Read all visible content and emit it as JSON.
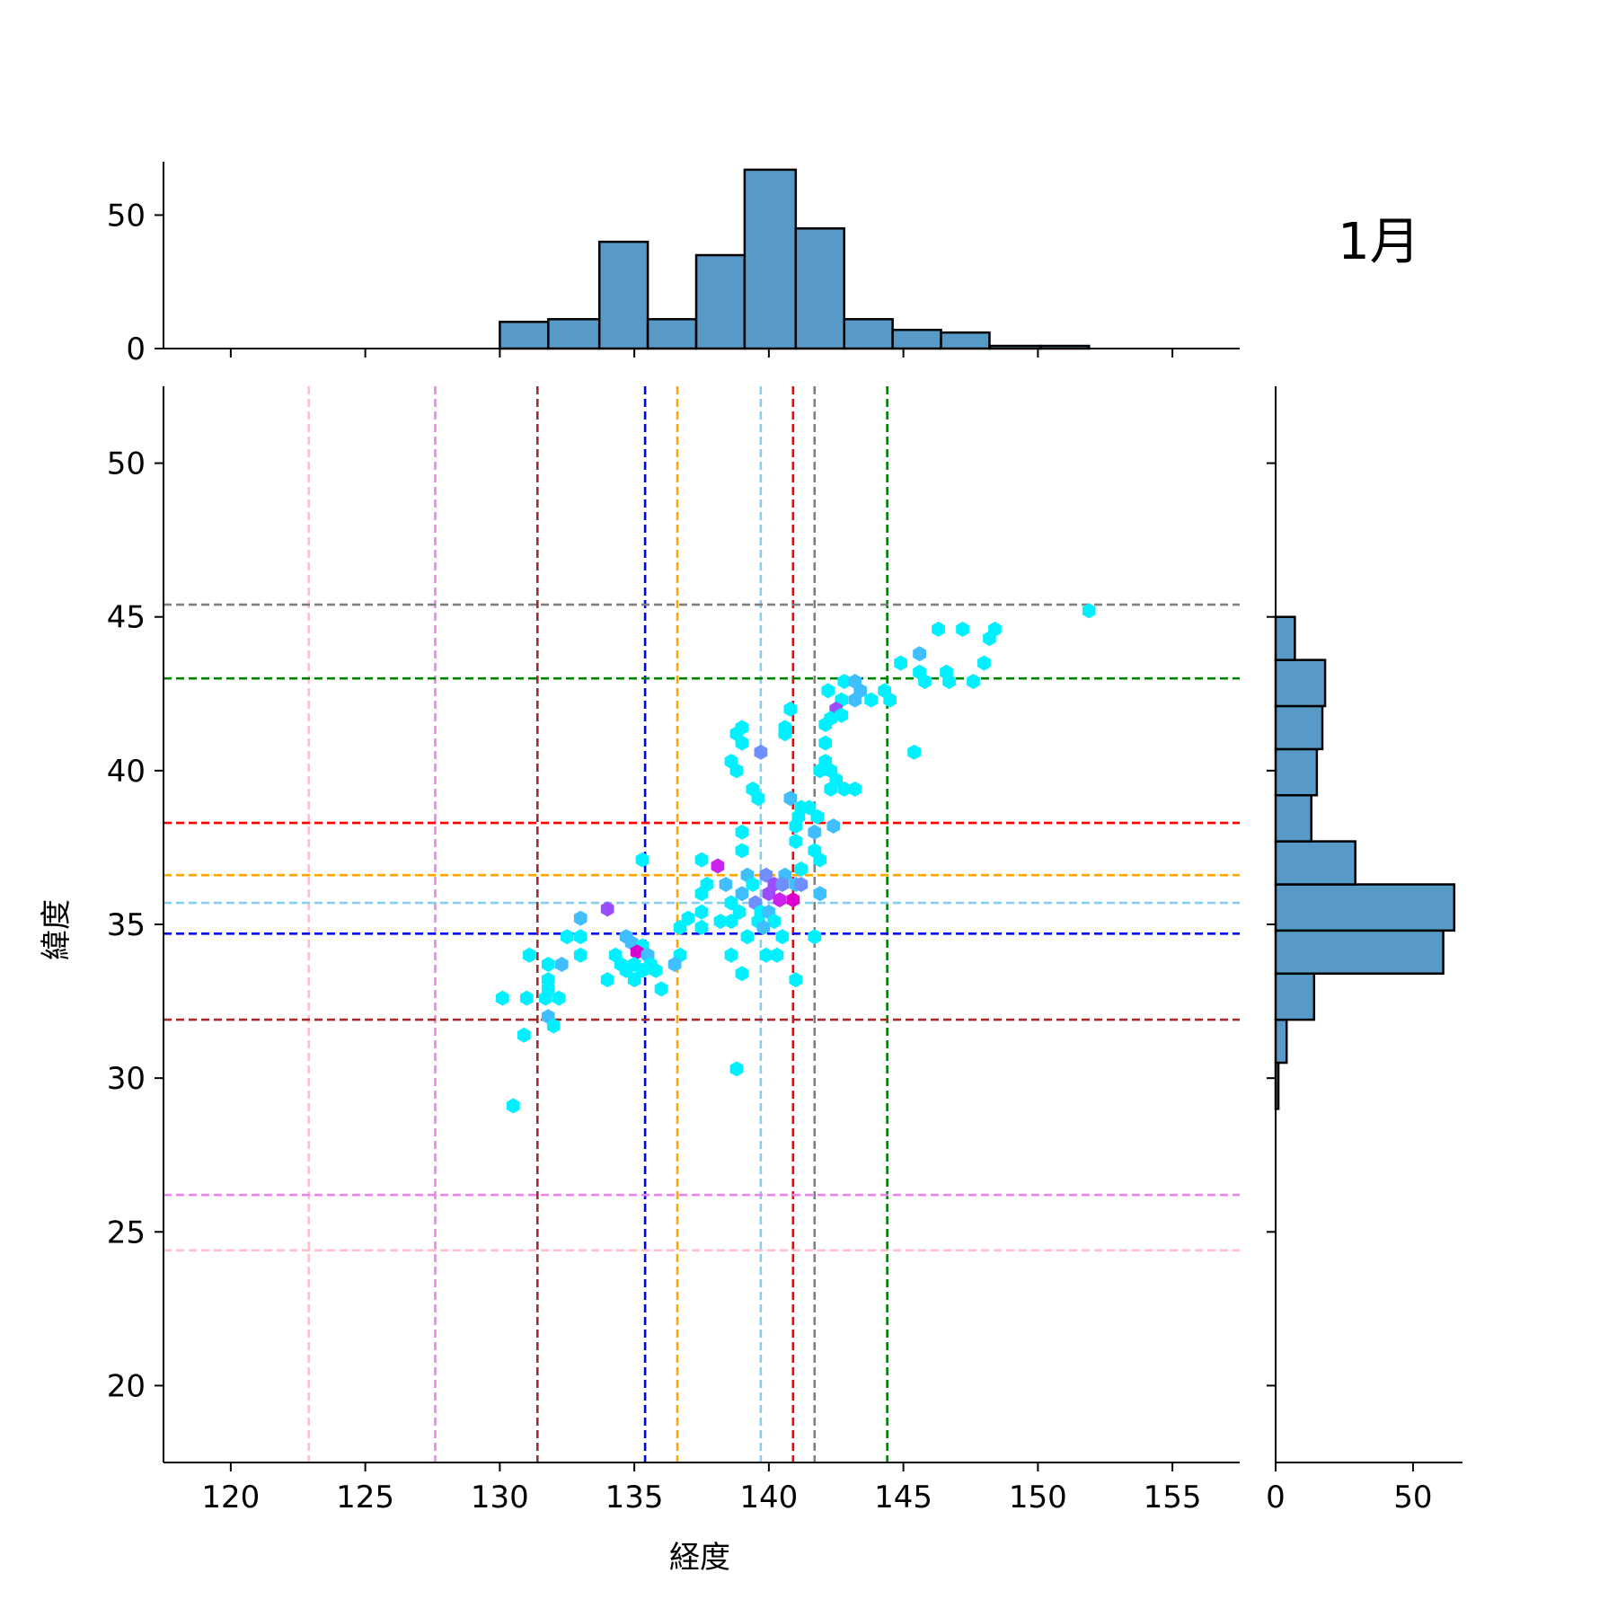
{
  "chart_data": {
    "type": "hexbin-jointplot",
    "title": "1月",
    "xlabel": "経度",
    "ylabel": "緯度",
    "xlim": [
      117.5,
      157.5
    ],
    "ylim": [
      17.5,
      52.5
    ],
    "xticks": [
      120,
      125,
      130,
      135,
      140,
      145,
      150,
      155
    ],
    "yticks": [
      20,
      25,
      30,
      35,
      40,
      45,
      50
    ],
    "marginal_x_ylim": [
      0,
      70
    ],
    "marginal_x_ticks": [
      0,
      50
    ],
    "marginal_y_xlim": [
      0,
      68
    ],
    "marginal_y_ticks": [
      0,
      50
    ],
    "hist_color": "#5799c7",
    "vlines": [
      {
        "x": 122.9,
        "color": "#ffc0cb"
      },
      {
        "x": 127.6,
        "color": "#ee82ee"
      },
      {
        "x": 131.4,
        "color": "#a52a2a"
      },
      {
        "x": 135.4,
        "color": "#0000ff"
      },
      {
        "x": 136.6,
        "color": "#ffa500"
      },
      {
        "x": 139.7,
        "color": "#87ceeb"
      },
      {
        "x": 140.9,
        "color": "#ff0000"
      },
      {
        "x": 141.7,
        "color": "#808080"
      },
      {
        "x": 144.4,
        "color": "#008000"
      }
    ],
    "hlines": [
      {
        "y": 45.4,
        "color": "#808080"
      },
      {
        "y": 43.0,
        "color": "#008000"
      },
      {
        "y": 38.3,
        "color": "#ff0000"
      },
      {
        "y": 36.6,
        "color": "#ffa500"
      },
      {
        "y": 35.7,
        "color": "#87ceeb"
      },
      {
        "y": 34.7,
        "color": "#0000ff"
      },
      {
        "y": 31.9,
        "color": "#a52a2a"
      },
      {
        "y": 26.2,
        "color": "#ee82ee"
      },
      {
        "y": 24.4,
        "color": "#ffc0cb"
      }
    ],
    "x_hist": [
      {
        "x0": 130.0,
        "x1": 131.8,
        "count": 10
      },
      {
        "x0": 131.8,
        "x1": 133.7,
        "count": 11
      },
      {
        "x0": 133.7,
        "x1": 135.5,
        "count": 40
      },
      {
        "x0": 135.5,
        "x1": 137.3,
        "count": 11
      },
      {
        "x0": 137.3,
        "x1": 139.1,
        "count": 35
      },
      {
        "x0": 139.1,
        "x1": 141.0,
        "count": 67
      },
      {
        "x0": 141.0,
        "x1": 142.8,
        "count": 45
      },
      {
        "x0": 142.8,
        "x1": 144.6,
        "count": 11
      },
      {
        "x0": 144.6,
        "x1": 146.4,
        "count": 7
      },
      {
        "x0": 146.4,
        "x1": 148.2,
        "count": 6
      },
      {
        "x0": 148.2,
        "x1": 150.1,
        "count": 1
      },
      {
        "x0": 150.1,
        "x1": 151.9,
        "count": 1
      }
    ],
    "y_hist": [
      {
        "y0": 29.0,
        "y1": 30.5,
        "count": 1
      },
      {
        "y0": 30.5,
        "y1": 31.9,
        "count": 4
      },
      {
        "y0": 31.9,
        "y1": 33.4,
        "count": 14
      },
      {
        "y0": 33.4,
        "y1": 34.8,
        "count": 61
      },
      {
        "y0": 34.8,
        "y1": 36.3,
        "count": 65
      },
      {
        "y0": 36.3,
        "y1": 37.7,
        "count": 29
      },
      {
        "y0": 37.7,
        "y1": 39.2,
        "count": 13
      },
      {
        "y0": 39.2,
        "y1": 40.7,
        "count": 15
      },
      {
        "y0": 40.7,
        "y1": 42.1,
        "count": 17
      },
      {
        "y0": 42.1,
        "y1": 43.6,
        "count": 18
      },
      {
        "y0": 43.6,
        "y1": 45.0,
        "count": 7
      }
    ],
    "hexbins": [
      {
        "x": 151.9,
        "y": 45.2,
        "c": "#00f0ff"
      },
      {
        "x": 146.3,
        "y": 44.6,
        "c": "#00f0ff"
      },
      {
        "x": 147.2,
        "y": 44.6,
        "c": "#00f0ff"
      },
      {
        "x": 148.4,
        "y": 44.6,
        "c": "#00f0ff"
      },
      {
        "x": 148.2,
        "y": 44.3,
        "c": "#00f0ff"
      },
      {
        "x": 145.6,
        "y": 43.8,
        "c": "#3fbfff"
      },
      {
        "x": 144.9,
        "y": 43.5,
        "c": "#00f0ff"
      },
      {
        "x": 148.0,
        "y": 43.5,
        "c": "#00f0ff"
      },
      {
        "x": 145.6,
        "y": 43.2,
        "c": "#00f0ff"
      },
      {
        "x": 146.6,
        "y": 43.2,
        "c": "#00f0ff"
      },
      {
        "x": 145.8,
        "y": 42.9,
        "c": "#00f0ff"
      },
      {
        "x": 146.7,
        "y": 42.9,
        "c": "#00f0ff"
      },
      {
        "x": 147.6,
        "y": 42.9,
        "c": "#00f0ff"
      },
      {
        "x": 142.8,
        "y": 42.9,
        "c": "#00f0ff"
      },
      {
        "x": 143.2,
        "y": 42.9,
        "c": "#3fbfff"
      },
      {
        "x": 142.2,
        "y": 42.6,
        "c": "#00f0ff"
      },
      {
        "x": 143.4,
        "y": 42.6,
        "c": "#3fbfff"
      },
      {
        "x": 144.3,
        "y": 42.6,
        "c": "#00f0ff"
      },
      {
        "x": 143.2,
        "y": 42.3,
        "c": "#3fbfff"
      },
      {
        "x": 143.8,
        "y": 42.3,
        "c": "#00f0ff"
      },
      {
        "x": 144.5,
        "y": 42.3,
        "c": "#00f0ff"
      },
      {
        "x": 142.7,
        "y": 42.3,
        "c": "#00f0ff"
      },
      {
        "x": 140.8,
        "y": 42.0,
        "c": "#00f0ff"
      },
      {
        "x": 142.5,
        "y": 42.0,
        "c": "#9a4dff"
      },
      {
        "x": 142.7,
        "y": 41.8,
        "c": "#00f0ff"
      },
      {
        "x": 142.3,
        "y": 41.7,
        "c": "#00f0ff"
      },
      {
        "x": 142.1,
        "y": 41.5,
        "c": "#00f0ff"
      },
      {
        "x": 140.6,
        "y": 41.4,
        "c": "#00f0ff"
      },
      {
        "x": 139.0,
        "y": 41.4,
        "c": "#00f0ff"
      },
      {
        "x": 138.8,
        "y": 41.2,
        "c": "#00f0ff"
      },
      {
        "x": 140.6,
        "y": 41.2,
        "c": "#00f0ff"
      },
      {
        "x": 139.0,
        "y": 40.9,
        "c": "#00f0ff"
      },
      {
        "x": 142.1,
        "y": 40.9,
        "c": "#00f0ff"
      },
      {
        "x": 139.7,
        "y": 40.6,
        "c": "#6f8fff"
      },
      {
        "x": 145.4,
        "y": 40.6,
        "c": "#00f0ff"
      },
      {
        "x": 138.6,
        "y": 40.3,
        "c": "#00f0ff"
      },
      {
        "x": 142.1,
        "y": 40.3,
        "c": "#00f0ff"
      },
      {
        "x": 141.9,
        "y": 40.0,
        "c": "#00f0ff"
      },
      {
        "x": 142.3,
        "y": 40.0,
        "c": "#00f0ff"
      },
      {
        "x": 138.8,
        "y": 40.0,
        "c": "#00f0ff"
      },
      {
        "x": 142.5,
        "y": 39.7,
        "c": "#00f0ff"
      },
      {
        "x": 139.4,
        "y": 39.4,
        "c": "#00f0ff"
      },
      {
        "x": 142.3,
        "y": 39.4,
        "c": "#00f0ff"
      },
      {
        "x": 142.8,
        "y": 39.4,
        "c": "#00f0ff"
      },
      {
        "x": 143.2,
        "y": 39.4,
        "c": "#00f0ff"
      },
      {
        "x": 139.6,
        "y": 39.1,
        "c": "#00f0ff"
      },
      {
        "x": 140.8,
        "y": 39.1,
        "c": "#3fbfff"
      },
      {
        "x": 141.2,
        "y": 38.8,
        "c": "#00f0ff"
      },
      {
        "x": 141.5,
        "y": 38.8,
        "c": "#00f0ff"
      },
      {
        "x": 141.1,
        "y": 38.5,
        "c": "#00f0ff"
      },
      {
        "x": 141.8,
        "y": 38.5,
        "c": "#00f0ff"
      },
      {
        "x": 141.0,
        "y": 38.2,
        "c": "#00f0ff"
      },
      {
        "x": 142.4,
        "y": 38.2,
        "c": "#3fbfff"
      },
      {
        "x": 139.0,
        "y": 38.0,
        "c": "#00f0ff"
      },
      {
        "x": 141.7,
        "y": 38.0,
        "c": "#3fbfff"
      },
      {
        "x": 141.0,
        "y": 37.7,
        "c": "#00f0ff"
      },
      {
        "x": 139.0,
        "y": 37.4,
        "c": "#00f0ff"
      },
      {
        "x": 141.7,
        "y": 37.4,
        "c": "#00f0ff"
      },
      {
        "x": 135.3,
        "y": 37.1,
        "c": "#00f0ff"
      },
      {
        "x": 137.5,
        "y": 37.1,
        "c": "#00f0ff"
      },
      {
        "x": 141.9,
        "y": 37.1,
        "c": "#00f0ff"
      },
      {
        "x": 141.2,
        "y": 36.8,
        "c": "#00f0ff"
      },
      {
        "x": 138.1,
        "y": 36.9,
        "c": "#cc22ee"
      },
      {
        "x": 139.2,
        "y": 36.6,
        "c": "#3fbfff"
      },
      {
        "x": 139.9,
        "y": 36.6,
        "c": "#6f8fff"
      },
      {
        "x": 140.6,
        "y": 36.6,
        "c": "#3fbfff"
      },
      {
        "x": 137.7,
        "y": 36.3,
        "c": "#00f0ff"
      },
      {
        "x": 138.4,
        "y": 36.3,
        "c": "#3fbfff"
      },
      {
        "x": 139.4,
        "y": 36.3,
        "c": "#00f0ff"
      },
      {
        "x": 140.2,
        "y": 36.3,
        "c": "#9a4dff"
      },
      {
        "x": 140.5,
        "y": 36.3,
        "c": "#6f8fff"
      },
      {
        "x": 141.0,
        "y": 36.3,
        "c": "#3fbfff"
      },
      {
        "x": 141.2,
        "y": 36.3,
        "c": "#6f8fff"
      },
      {
        "x": 137.5,
        "y": 36.0,
        "c": "#00f0ff"
      },
      {
        "x": 139.0,
        "y": 36.0,
        "c": "#3fbfff"
      },
      {
        "x": 140.0,
        "y": 36.0,
        "c": "#9a4dff"
      },
      {
        "x": 141.9,
        "y": 36.0,
        "c": "#3fbfff"
      },
      {
        "x": 138.6,
        "y": 35.7,
        "c": "#00f0ff"
      },
      {
        "x": 139.5,
        "y": 35.7,
        "c": "#6f8fff"
      },
      {
        "x": 140.4,
        "y": 35.8,
        "c": "#cc22ee"
      },
      {
        "x": 140.9,
        "y": 35.8,
        "c": "#dd00cc"
      },
      {
        "x": 137.5,
        "y": 35.4,
        "c": "#00f0ff"
      },
      {
        "x": 138.9,
        "y": 35.4,
        "c": "#00f0ff"
      },
      {
        "x": 139.7,
        "y": 35.4,
        "c": "#00f0ff"
      },
      {
        "x": 140.0,
        "y": 35.4,
        "c": "#3fbfff"
      },
      {
        "x": 134.0,
        "y": 35.5,
        "c": "#9a4dff"
      },
      {
        "x": 133.0,
        "y": 35.2,
        "c": "#3fbfff"
      },
      {
        "x": 137.0,
        "y": 35.2,
        "c": "#00f0ff"
      },
      {
        "x": 138.2,
        "y": 35.1,
        "c": "#00f0ff"
      },
      {
        "x": 138.6,
        "y": 35.1,
        "c": "#00f0ff"
      },
      {
        "x": 139.6,
        "y": 35.1,
        "c": "#00f0ff"
      },
      {
        "x": 140.2,
        "y": 35.1,
        "c": "#00f0ff"
      },
      {
        "x": 136.7,
        "y": 34.9,
        "c": "#00f0ff"
      },
      {
        "x": 137.5,
        "y": 34.9,
        "c": "#00f0ff"
      },
      {
        "x": 139.8,
        "y": 34.9,
        "c": "#3fbfff"
      },
      {
        "x": 132.5,
        "y": 34.6,
        "c": "#00f0ff"
      },
      {
        "x": 133.0,
        "y": 34.6,
        "c": "#00f0ff"
      },
      {
        "x": 134.7,
        "y": 34.6,
        "c": "#3fbfff"
      },
      {
        "x": 139.2,
        "y": 34.6,
        "c": "#00f0ff"
      },
      {
        "x": 140.5,
        "y": 34.6,
        "c": "#00f0ff"
      },
      {
        "x": 141.7,
        "y": 34.6,
        "c": "#00f0ff"
      },
      {
        "x": 134.9,
        "y": 34.4,
        "c": "#3fbfff"
      },
      {
        "x": 135.3,
        "y": 34.3,
        "c": "#00f0ff"
      },
      {
        "x": 131.1,
        "y": 34.0,
        "c": "#00f0ff"
      },
      {
        "x": 133.0,
        "y": 34.0,
        "c": "#00f0ff"
      },
      {
        "x": 134.3,
        "y": 34.0,
        "c": "#00f0ff"
      },
      {
        "x": 135.1,
        "y": 34.1,
        "c": "#dd00cc"
      },
      {
        "x": 135.5,
        "y": 34.0,
        "c": "#3fbfff"
      },
      {
        "x": 136.7,
        "y": 34.0,
        "c": "#00f0ff"
      },
      {
        "x": 138.6,
        "y": 34.0,
        "c": "#00f0ff"
      },
      {
        "x": 139.9,
        "y": 34.0,
        "c": "#00f0ff"
      },
      {
        "x": 140.3,
        "y": 34.0,
        "c": "#00f0ff"
      },
      {
        "x": 131.8,
        "y": 33.7,
        "c": "#00f0ff"
      },
      {
        "x": 132.3,
        "y": 33.7,
        "c": "#3fbfff"
      },
      {
        "x": 134.5,
        "y": 33.7,
        "c": "#00f0ff"
      },
      {
        "x": 135.0,
        "y": 33.7,
        "c": "#00f0ff"
      },
      {
        "x": 135.6,
        "y": 33.7,
        "c": "#00f0ff"
      },
      {
        "x": 136.5,
        "y": 33.7,
        "c": "#3fbfff"
      },
      {
        "x": 134.7,
        "y": 33.5,
        "c": "#00f0ff"
      },
      {
        "x": 135.3,
        "y": 33.5,
        "c": "#00f0ff"
      },
      {
        "x": 135.8,
        "y": 33.5,
        "c": "#00f0ff"
      },
      {
        "x": 139.0,
        "y": 33.4,
        "c": "#00f0ff"
      },
      {
        "x": 131.8,
        "y": 33.2,
        "c": "#00f0ff"
      },
      {
        "x": 134.0,
        "y": 33.2,
        "c": "#00f0ff"
      },
      {
        "x": 135.0,
        "y": 33.2,
        "c": "#00f0ff"
      },
      {
        "x": 141.0,
        "y": 33.2,
        "c": "#00f0ff"
      },
      {
        "x": 131.8,
        "y": 32.9,
        "c": "#00f0ff"
      },
      {
        "x": 136.0,
        "y": 32.9,
        "c": "#00f0ff"
      },
      {
        "x": 130.1,
        "y": 32.6,
        "c": "#00f0ff"
      },
      {
        "x": 131.0,
        "y": 32.6,
        "c": "#00f0ff"
      },
      {
        "x": 131.7,
        "y": 32.6,
        "c": "#00f0ff"
      },
      {
        "x": 132.2,
        "y": 32.6,
        "c": "#00f0ff"
      },
      {
        "x": 131.8,
        "y": 32.0,
        "c": "#3fbfff"
      },
      {
        "x": 132.0,
        "y": 31.7,
        "c": "#00f0ff"
      },
      {
        "x": 130.9,
        "y": 31.4,
        "c": "#00f0ff"
      },
      {
        "x": 138.8,
        "y": 30.3,
        "c": "#00f0ff"
      },
      {
        "x": 130.5,
        "y": 29.1,
        "c": "#00f0ff"
      }
    ]
  }
}
